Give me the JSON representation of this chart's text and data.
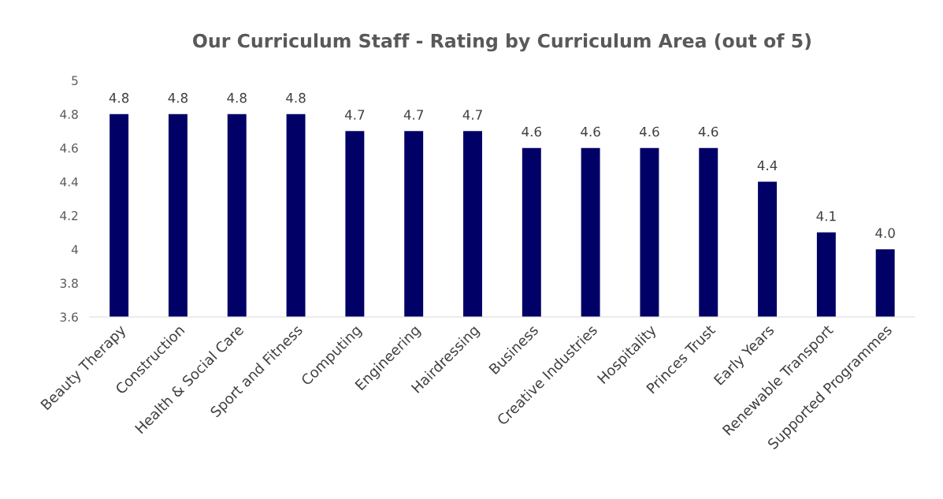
{
  "chart_data": {
    "type": "bar",
    "title": "Our Curriculum Staff - Rating by Curriculum Area (out of 5)",
    "categories": [
      "Beauty Therapy",
      "Construction",
      "Health & Social Care",
      "Sport and Fitness",
      "Computing",
      "Engineering",
      "Hairdressing",
      "Business",
      "Creative Industries",
      "Hospitality",
      "Princes Trust",
      "Early Years",
      "Renewable Transport",
      "Supported Programmes"
    ],
    "values": [
      4.8,
      4.8,
      4.8,
      4.8,
      4.7,
      4.7,
      4.7,
      4.6,
      4.6,
      4.6,
      4.6,
      4.4,
      4.1,
      4.0
    ],
    "value_labels": [
      "4.8",
      "4.8",
      "4.8",
      "4.8",
      "4.7",
      "4.7",
      "4.7",
      "4.6",
      "4.6",
      "4.6",
      "4.6",
      "4.4",
      "4.1",
      "4.0"
    ],
    "color": "#000066",
    "ylim": [
      3.6,
      5
    ],
    "yticks": [
      3.6,
      3.8,
      4,
      4.2,
      4.4,
      4.6,
      4.8,
      5
    ],
    "grid": false
  }
}
